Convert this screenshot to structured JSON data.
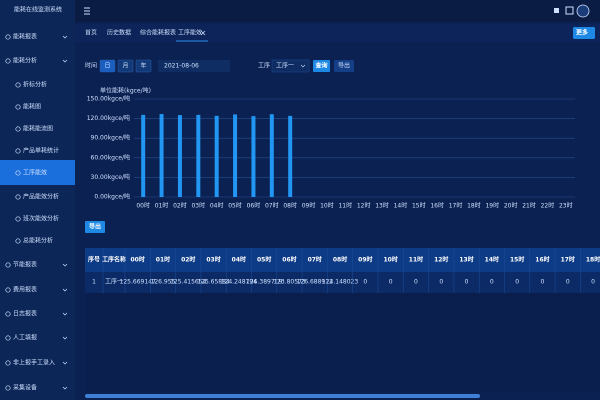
{
  "header": {
    "title": "能耗在线监测系统"
  },
  "sidebar": {
    "items": [
      "能耗报表",
      "能耗分析",
      "折标分析",
      "能耗图",
      "能耗能流图",
      "产品单耗统计",
      "工序能效",
      "产品能效分析",
      "班次能效分析",
      "总能耗分析",
      "节能报表",
      "费用报表",
      "日志报表",
      "人工填报",
      "非上报手工录入",
      "采集设备"
    ]
  },
  "tabs": [
    "首页",
    "历史数据",
    "综合能耗报表",
    "工序能效"
  ],
  "more_button": "更多",
  "filters": {
    "time_label": "时间",
    "periods": [
      "日",
      "月",
      "年"
    ],
    "date": "2021-08-06",
    "process_label": "工序",
    "process": "工序一",
    "query": "查询",
    "export": "导出"
  },
  "table_export": "导出",
  "chart_data": {
    "type": "bar",
    "y_label": "单位能耗(kgce/吨)",
    "categories": [
      "00时",
      "01时",
      "02时",
      "03时",
      "04时",
      "05时",
      "06时",
      "07时",
      "08时",
      "09时",
      "10时",
      "11时",
      "12时",
      "13时",
      "14时",
      "15时",
      "16时",
      "17时",
      "18时",
      "19时",
      "20时",
      "21时",
      "22时",
      "23时"
    ],
    "values": [
      125.669147,
      126.955,
      125.415654,
      125.65884,
      124.248794,
      126.389719,
      123.80573,
      126.688912,
      124.148023,
      0,
      0,
      0,
      0,
      0,
      0,
      0,
      0,
      0,
      0,
      0,
      0,
      0,
      0,
      0
    ],
    "color": "#2196f3",
    "ylim": [
      0,
      150
    ],
    "yticks": [
      {
        "value": 0,
        "label": "0.00kgce/吨"
      },
      {
        "value": 30,
        "label": "30.00kgce/吨"
      },
      {
        "value": 60,
        "label": "60.00kgce/吨"
      },
      {
        "value": 90,
        "label": "90.00kgce/吨"
      },
      {
        "value": 120,
        "label": "120.00kgce/吨"
      },
      {
        "value": 150,
        "label": "150.00kgce/吨"
      }
    ],
    "grid": true
  },
  "table": {
    "headers": [
      "序号",
      "工序名称"
    ],
    "rows": [
      [
        1,
        "工序一"
      ]
    ]
  }
}
